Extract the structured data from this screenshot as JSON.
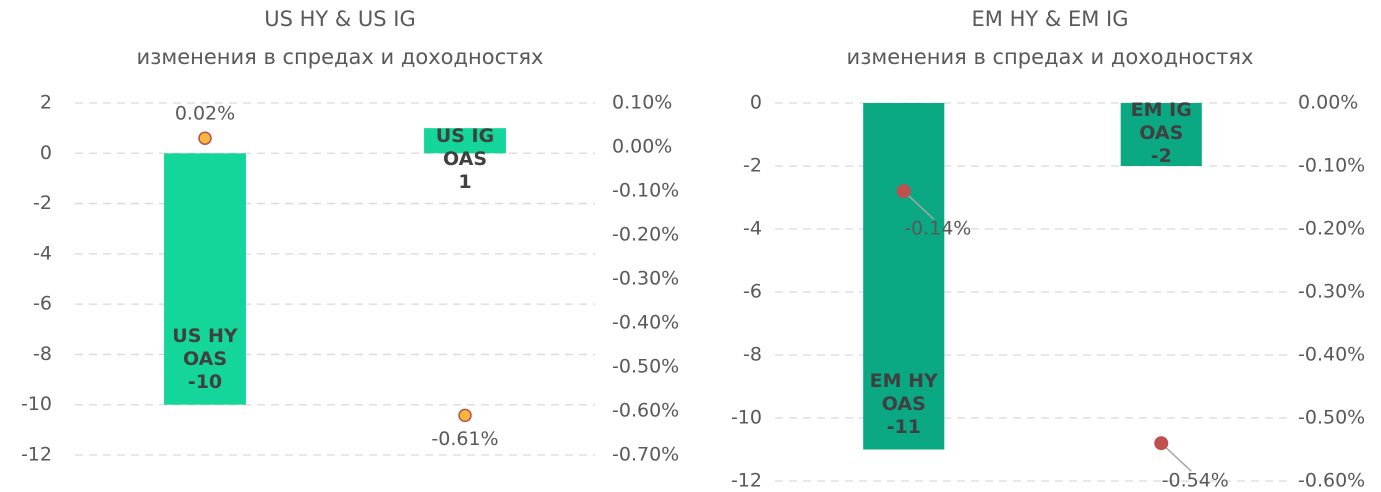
{
  "chart_data": [
    {
      "type": "bar",
      "title": "US HY & US IG",
      "subtitle": "изменения в спредах и доходностях",
      "categories": [
        "US HY OAS",
        "US IG OAS"
      ],
      "series": [
        {
          "type": "bar",
          "color": "#14d69b",
          "values": [
            -10,
            1
          ]
        },
        {
          "type": "scatter",
          "axis": "y2",
          "color": "#f5b83d",
          "values": [
            0.02,
            -0.61
          ],
          "value_labels": [
            "0.02%",
            "-0.61%"
          ]
        }
      ],
      "ylim": [
        -12,
        2
      ],
      "yticks": [
        -12,
        -10,
        -8,
        -6,
        -4,
        -2,
        0,
        2
      ],
      "y2lim": [
        -0.7,
        0.1
      ],
      "y2ticks": [
        {
          "value": -0.7,
          "label": "-0.70%"
        },
        {
          "value": -0.6,
          "label": "-0.60%"
        },
        {
          "value": -0.5,
          "label": "-0.50%"
        },
        {
          "value": -0.4,
          "label": "-0.40%"
        },
        {
          "value": -0.3,
          "label": "-0.30%"
        },
        {
          "value": -0.2,
          "label": "-0.20%"
        },
        {
          "value": -0.1,
          "label": "-0.10%"
        },
        {
          "value": 0,
          "label": "0.00%"
        },
        {
          "value": 0.1,
          "label": "0.10%"
        }
      ],
      "grid": true
    },
    {
      "type": "bar",
      "title": "EM HY & EM IG",
      "subtitle": "изменения в спредах и доходностях",
      "categories": [
        "EM HY OAS",
        "EM IG OAS"
      ],
      "series": [
        {
          "type": "bar",
          "color": "#0aa984",
          "values": [
            -11,
            -2
          ]
        },
        {
          "type": "scatter",
          "axis": "y2",
          "color": "#c0504d",
          "values": [
            -0.14,
            -0.54
          ],
          "value_labels": [
            "-0.14%",
            "-0.54%"
          ]
        }
      ],
      "ylim": [
        -12,
        0
      ],
      "yticks": [
        -12,
        -10,
        -8,
        -6,
        -4,
        -2,
        0
      ],
      "y2lim": [
        -0.6,
        0
      ],
      "y2ticks": [
        {
          "value": -0.6,
          "label": "-0.60%"
        },
        {
          "value": -0.5,
          "label": "-0.50%"
        },
        {
          "value": -0.4,
          "label": "-0.40%"
        },
        {
          "value": -0.3,
          "label": "-0.30%"
        },
        {
          "value": -0.2,
          "label": "-0.20%"
        },
        {
          "value": -0.1,
          "label": "-0.10%"
        },
        {
          "value": 0,
          "label": "0.00%"
        }
      ],
      "grid": true
    }
  ]
}
